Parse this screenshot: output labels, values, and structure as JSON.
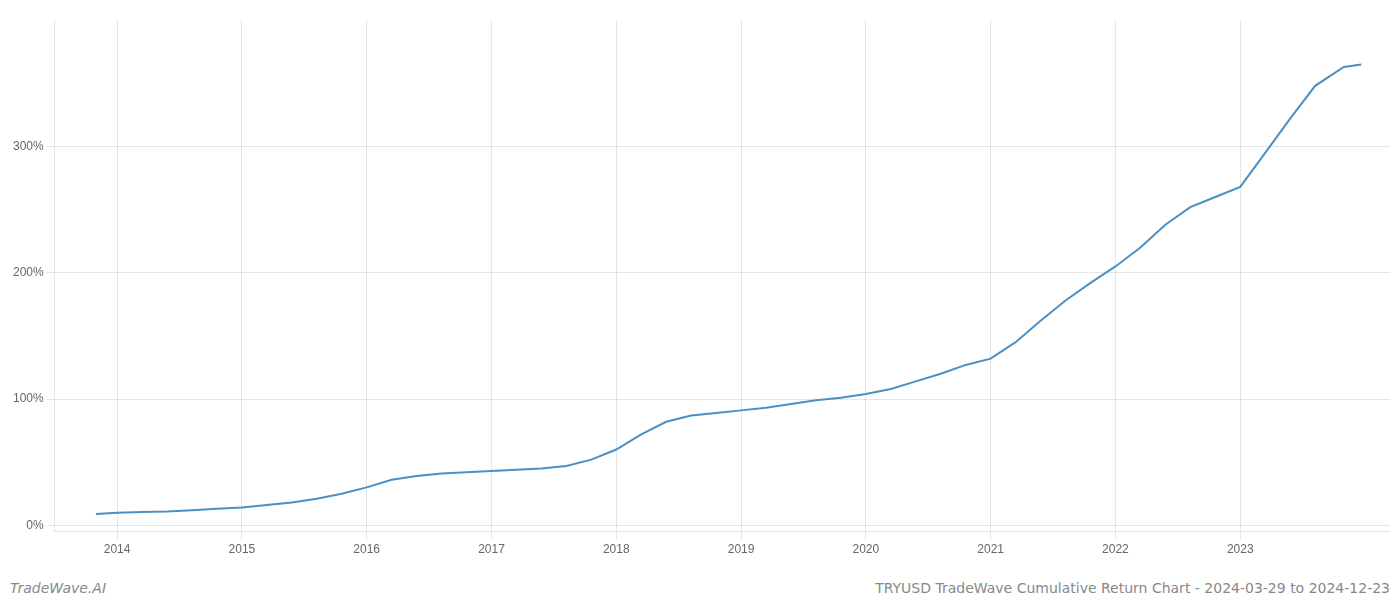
{
  "chart_data": {
    "type": "line",
    "title": "TRYUSD TradeWave Cumulative Return Chart - 2024-03-29 to 2024-12-23",
    "annotations": [
      "TradeWave.AI"
    ],
    "color": "#4a90c4",
    "grid": true,
    "x": [
      2013.83,
      2014.0,
      2014.2,
      2014.4,
      2014.6,
      2014.8,
      2015.0,
      2015.2,
      2015.4,
      2015.6,
      2015.8,
      2016.0,
      2016.2,
      2016.4,
      2016.6,
      2016.8,
      2017.0,
      2017.2,
      2017.4,
      2017.6,
      2017.8,
      2018.0,
      2018.2,
      2018.4,
      2018.6,
      2018.8,
      2019.0,
      2019.2,
      2019.4,
      2019.6,
      2019.8,
      2020.0,
      2020.2,
      2020.4,
      2020.6,
      2020.8,
      2021.0,
      2021.2,
      2021.4,
      2021.6,
      2021.8,
      2022.0,
      2022.2,
      2022.4,
      2022.6,
      2022.8,
      2023.0,
      2023.2,
      2023.4,
      2023.6,
      2023.83,
      2023.97
    ],
    "values": [
      9,
      10,
      10.5,
      11,
      12,
      13,
      14,
      16,
      18,
      21,
      25,
      30,
      36,
      39,
      41,
      42,
      43,
      44,
      45,
      47,
      52,
      60,
      72,
      82,
      87,
      89,
      91,
      93,
      96,
      99,
      101,
      104,
      108,
      114,
      120,
      127,
      132,
      145,
      162,
      178,
      192,
      205,
      220,
      238,
      252,
      260,
      268,
      295,
      322,
      348,
      363,
      365
    ],
    "xlim": [
      2013.5,
      2024.2
    ],
    "xticks": [
      2014,
      2015,
      2016,
      2017,
      2018,
      2019,
      2020,
      2021,
      2022,
      2023
    ],
    "ylim": [
      -5,
      400
    ],
    "yticks": [
      {
        "value": 0,
        "label": "0%"
      },
      {
        "value": 100,
        "label": "100%"
      },
      {
        "value": 200,
        "label": "200%"
      },
      {
        "value": 300,
        "label": "300%"
      }
    ]
  }
}
